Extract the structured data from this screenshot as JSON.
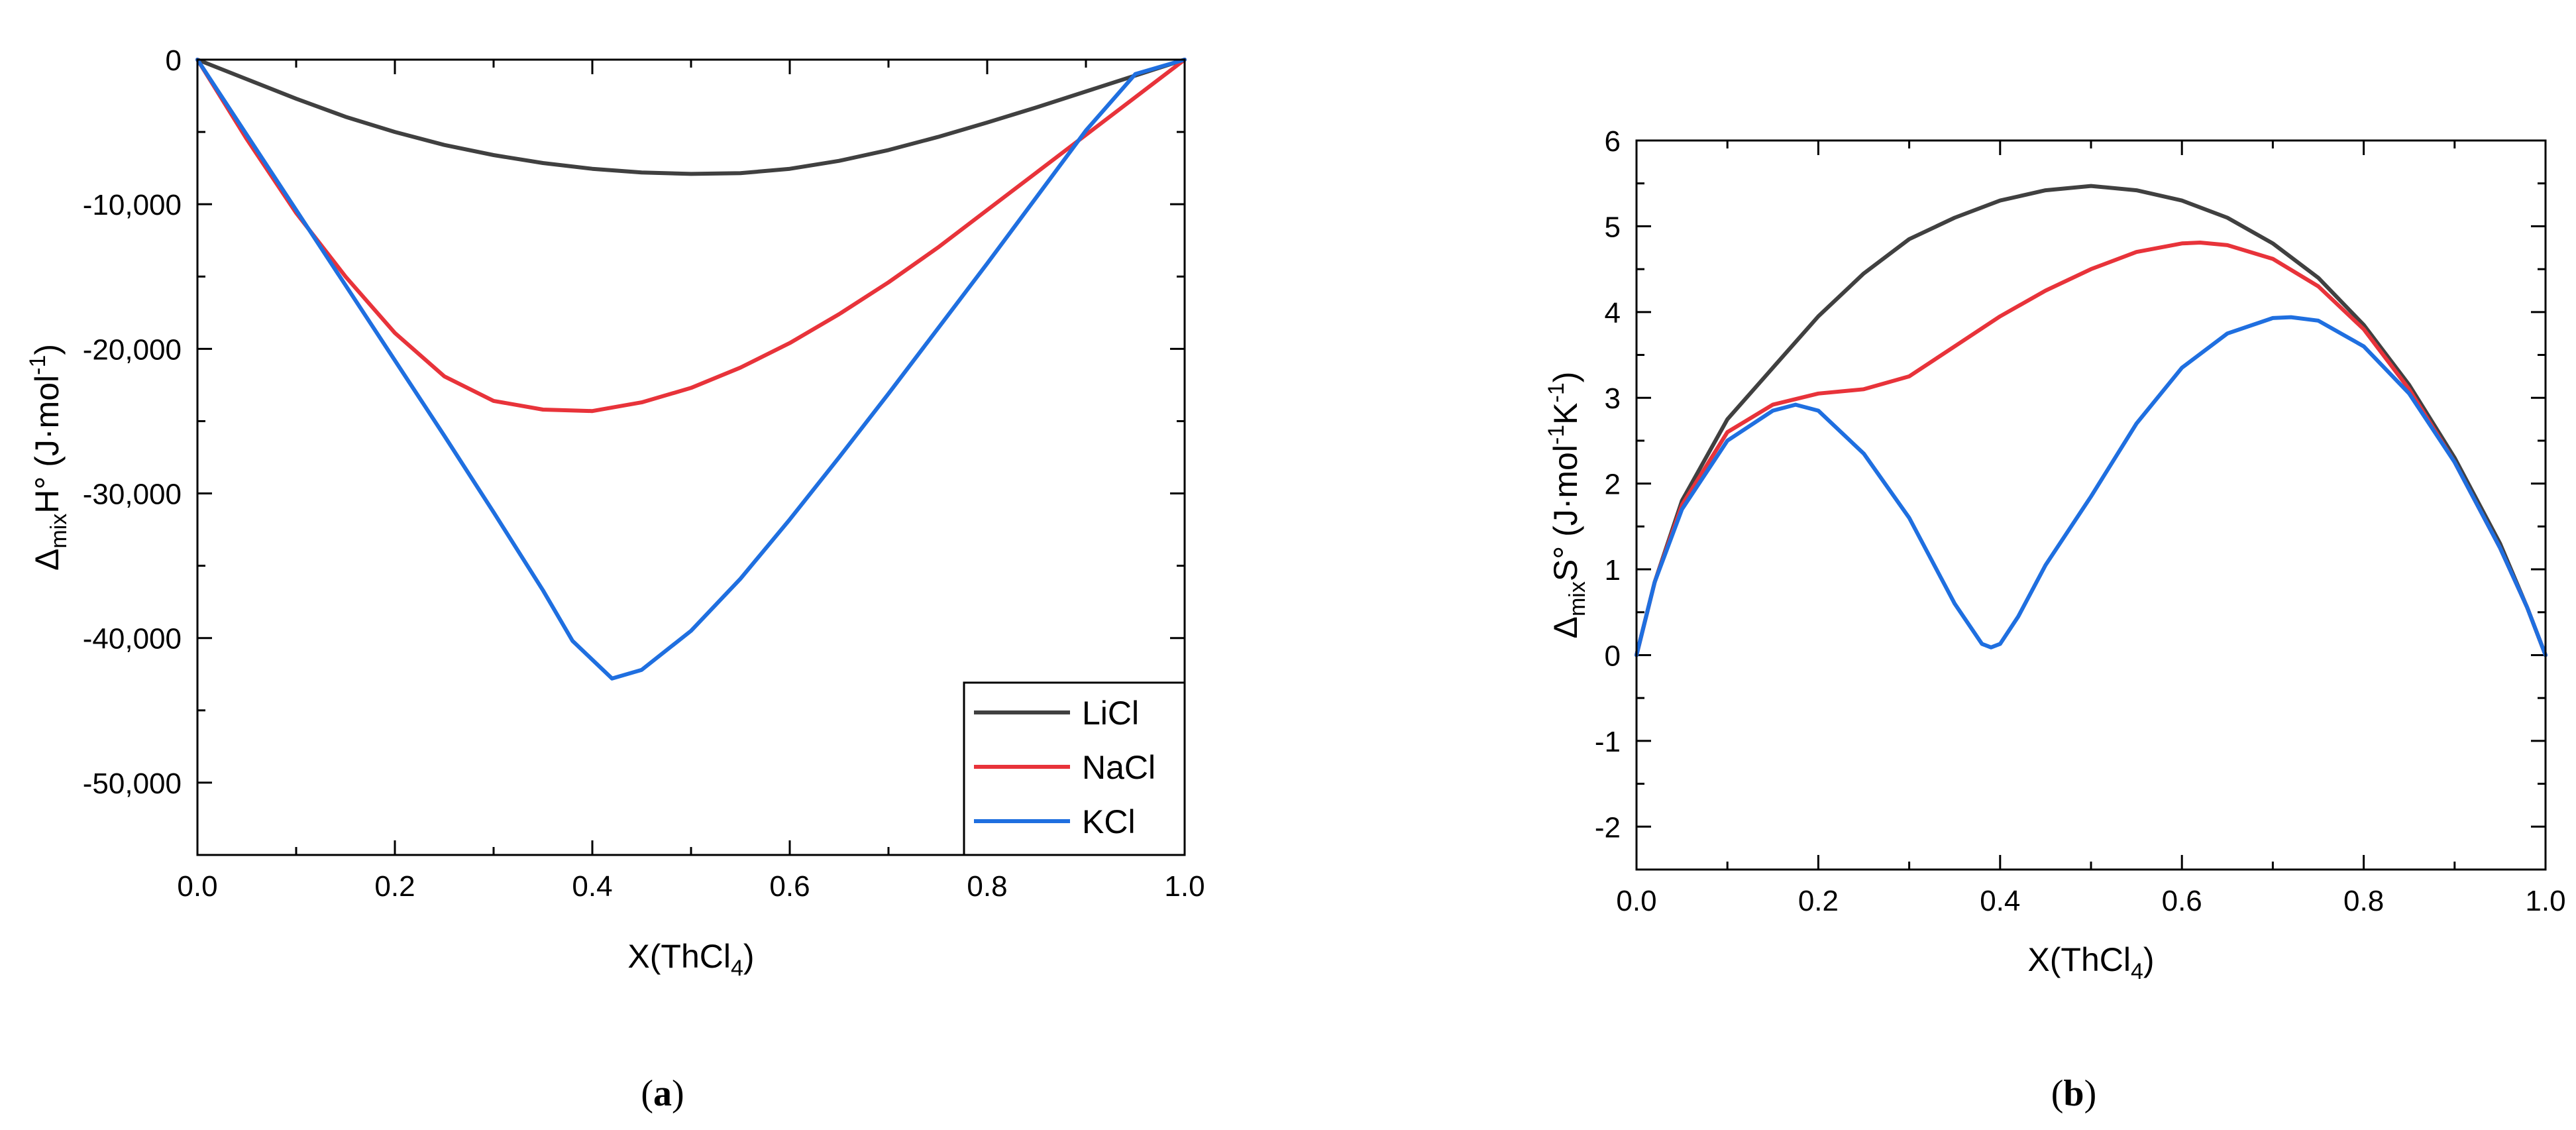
{
  "chart_data": [
    {
      "type": "line",
      "panel": "a",
      "caption": {
        "open": "(",
        "letter": "a",
        "close": ")"
      },
      "xlabel": {
        "main": "X(ThCl",
        "sub": "4",
        "close": ")"
      },
      "ylabel": {
        "delta": "Δ",
        "sub": "mix",
        "main": "H° (J·mol",
        "sup": "-1",
        "close": ")"
      },
      "xlim": [
        0,
        1.0
      ],
      "ylim": [
        -55000,
        0
      ],
      "xticks": [
        0.0,
        0.2,
        0.4,
        0.6,
        0.8,
        1.0
      ],
      "xtick_labels": [
        "0.0",
        "0.2",
        "0.4",
        "0.6",
        "0.8",
        "1.0"
      ],
      "yticks": [
        0,
        -10000,
        -20000,
        -30000,
        -40000,
        -50000
      ],
      "ytick_labels": [
        "0",
        "-10,000",
        "-20,000",
        "-30,000",
        "-40,000",
        "-50,000"
      ],
      "legend_position": "bottom-right",
      "series": [
        {
          "name": "LiCl",
          "color": "#404040",
          "x": [
            0,
            0.05,
            0.1,
            0.15,
            0.2,
            0.25,
            0.3,
            0.35,
            0.4,
            0.45,
            0.5,
            0.55,
            0.6,
            0.65,
            0.7,
            0.75,
            0.8,
            0.85,
            0.9,
            0.95,
            1.0
          ],
          "y": [
            0,
            -1350,
            -2700,
            -3950,
            -5000,
            -5900,
            -6600,
            -7150,
            -7550,
            -7800,
            -7900,
            -7850,
            -7550,
            -7000,
            -6250,
            -5350,
            -4350,
            -3300,
            -2200,
            -1100,
            0
          ]
        },
        {
          "name": "NaCl",
          "color": "#e8333a",
          "x": [
            0,
            0.05,
            0.1,
            0.15,
            0.2,
            0.25,
            0.3,
            0.35,
            0.4,
            0.45,
            0.5,
            0.55,
            0.6,
            0.65,
            0.7,
            0.75,
            0.8,
            0.85,
            0.9,
            0.95,
            1.0
          ],
          "y": [
            0,
            -5500,
            -10600,
            -15000,
            -18900,
            -21900,
            -23600,
            -24200,
            -24300,
            -23700,
            -22700,
            -21300,
            -19600,
            -17600,
            -15400,
            -13000,
            -10400,
            -7800,
            -5200,
            -2600,
            0
          ]
        },
        {
          "name": "KCl",
          "color": "#1f6fe0",
          "x": [
            0,
            0.05,
            0.1,
            0.15,
            0.2,
            0.25,
            0.3,
            0.35,
            0.38,
            0.42,
            0.45,
            0.5,
            0.55,
            0.6,
            0.65,
            0.7,
            0.75,
            0.8,
            0.85,
            0.9,
            0.95,
            1.0
          ],
          "y": [
            0,
            -5200,
            -10400,
            -15600,
            -20800,
            -26000,
            -31300,
            -36700,
            -40200,
            -42800,
            -42200,
            -39500,
            -35900,
            -31800,
            -27500,
            -23100,
            -18600,
            -14100,
            -9500,
            -4900,
            -1000,
            0
          ]
        }
      ]
    },
    {
      "type": "line",
      "panel": "b",
      "caption": {
        "open": "(",
        "letter": "b",
        "close": ")"
      },
      "xlabel": {
        "main": "X(ThCl",
        "sub": "4",
        "close": ")"
      },
      "ylabel": {
        "delta": "Δ",
        "sub": "mix",
        "main": "S° (J·mol",
        "sup1": "-1",
        "mid": "K",
        "sup2": "-1",
        "close": ")"
      },
      "xlim": [
        0,
        1.0
      ],
      "ylim": [
        -2.5,
        6
      ],
      "xticks": [
        0.0,
        0.2,
        0.4,
        0.6,
        0.8,
        1.0
      ],
      "xtick_labels": [
        "0.0",
        "0.2",
        "0.4",
        "0.6",
        "0.8",
        "1.0"
      ],
      "yticks": [
        -2,
        -1,
        0,
        1,
        2,
        3,
        4,
        5,
        6
      ],
      "ytick_labels": [
        "-2",
        "-1",
        "0",
        "1",
        "2",
        "3",
        "4",
        "5",
        "6"
      ],
      "series": [
        {
          "name": "LiCl",
          "color": "#404040",
          "x": [
            0,
            0.02,
            0.05,
            0.1,
            0.15,
            0.2,
            0.25,
            0.3,
            0.35,
            0.4,
            0.45,
            0.5,
            0.55,
            0.6,
            0.65,
            0.7,
            0.75,
            0.8,
            0.85,
            0.9,
            0.95,
            0.98,
            1.0
          ],
          "y": [
            0,
            0.85,
            1.8,
            2.75,
            3.35,
            3.95,
            4.45,
            4.85,
            5.1,
            5.3,
            5.42,
            5.47,
            5.42,
            5.3,
            5.1,
            4.8,
            4.4,
            3.85,
            3.15,
            2.3,
            1.3,
            0.55,
            0
          ]
        },
        {
          "name": "NaCl",
          "color": "#e8333a",
          "x": [
            0,
            0.02,
            0.05,
            0.1,
            0.15,
            0.2,
            0.25,
            0.3,
            0.35,
            0.4,
            0.45,
            0.5,
            0.55,
            0.6,
            0.62,
            0.65,
            0.7,
            0.75,
            0.8,
            0.85,
            0.9,
            0.95,
            0.98,
            1.0
          ],
          "y": [
            0,
            0.85,
            1.75,
            2.6,
            2.92,
            3.05,
            3.1,
            3.25,
            3.6,
            3.95,
            4.25,
            4.5,
            4.7,
            4.8,
            4.81,
            4.78,
            4.62,
            4.3,
            3.8,
            3.1,
            2.25,
            1.25,
            0.55,
            0
          ]
        },
        {
          "name": "KCl",
          "color": "#1f6fe0",
          "x": [
            0,
            0.02,
            0.05,
            0.1,
            0.15,
            0.175,
            0.2,
            0.25,
            0.3,
            0.35,
            0.38,
            0.39,
            0.4,
            0.42,
            0.45,
            0.5,
            0.55,
            0.6,
            0.65,
            0.7,
            0.72,
            0.75,
            0.8,
            0.85,
            0.9,
            0.95,
            0.98,
            1.0
          ],
          "y": [
            0,
            0.85,
            1.7,
            2.5,
            2.85,
            2.92,
            2.85,
            2.35,
            1.6,
            0.6,
            0.13,
            0.09,
            0.13,
            0.45,
            1.05,
            1.85,
            2.7,
            3.35,
            3.75,
            3.93,
            3.94,
            3.9,
            3.6,
            3.05,
            2.25,
            1.25,
            0.55,
            0
          ]
        }
      ]
    }
  ]
}
